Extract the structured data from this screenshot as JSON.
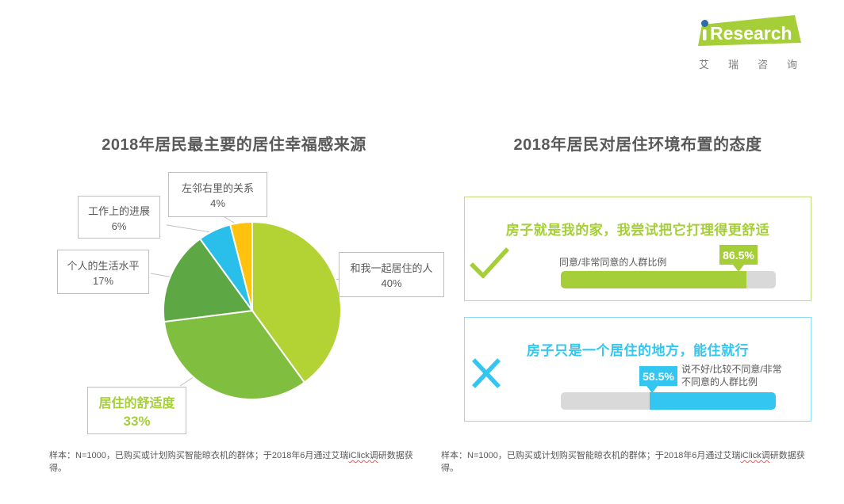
{
  "theme": {
    "green": "#A5CE39",
    "cyan": "#33C6F0",
    "gold": "#FFC20E",
    "track_gray": "#D9D9D9",
    "text_dark": "#595959"
  },
  "logo": {
    "brand": "Research",
    "brand_i": "i",
    "subtitle": "艾瑞咨询"
  },
  "left_section": {
    "title": "2018年居民最主要的居住幸福感来源"
  },
  "right_section": {
    "title": "2018年居民对居住环境布置的态度"
  },
  "footnote": {
    "main": "样本：N=1000，已购买或计划购买智能晾衣机的群体；于2018年6月通过艾瑞",
    "flagged": "iClick调",
    "tail": "研数据获得。"
  },
  "chart_data": [
    {
      "type": "pie",
      "title": "2018年居民最主要的居住幸福感来源",
      "labels": [
        "和我一起居住的人",
        "居住的舒适度",
        "个人的生活水平",
        "工作上的进展",
        "左邻右里的关系"
      ],
      "values": [
        40,
        33,
        17,
        6,
        4
      ],
      "colors": [
        "#B3D335",
        "#80BE40",
        "#5EA745",
        "#29BFEA",
        "#FFC20E"
      ],
      "start_angle": "12-oclock",
      "direction": "clockwise",
      "highlighted_label": "居住的舒适度",
      "label_style": "callout-boxes"
    },
    {
      "type": "bar",
      "title": "2018年居民对居住环境布置的态度",
      "xlim": [
        0,
        100
      ],
      "items": [
        {
          "statement": "房子就是我的家，我尝试把它打理得更舒适",
          "metric": "同意/非常同意的人群比例",
          "value": 86.5,
          "color": "#A5CE39",
          "icon": "check",
          "fill_align": "left"
        },
        {
          "statement": "房子只是一个居住的地方，能住就行",
          "metric": "说不好/比较不同意/非常不同意的人群比例",
          "value": 58.5,
          "color": "#33C6F0",
          "icon": "cross",
          "fill_align": "right"
        }
      ]
    }
  ]
}
